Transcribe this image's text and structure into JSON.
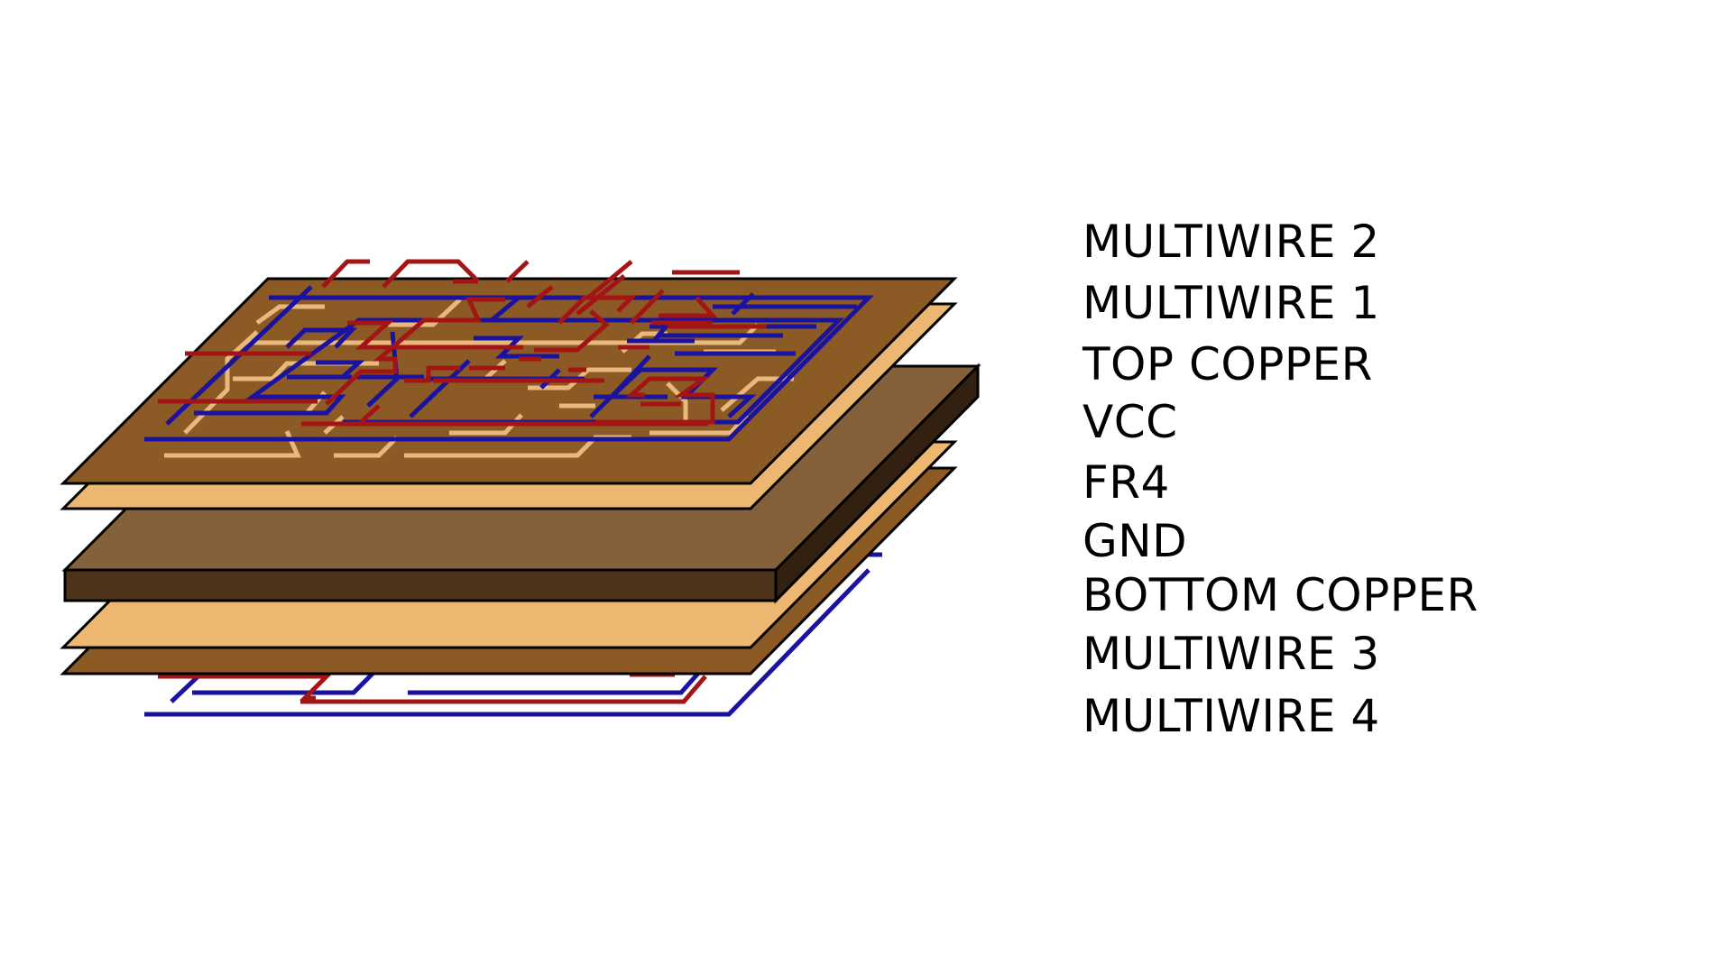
{
  "layers": [
    {
      "label": "MULTIWIRE 2"
    },
    {
      "label": "MULTIWIRE 1"
    },
    {
      "label": "TOP COPPER"
    },
    {
      "label": "VCC"
    },
    {
      "label": "FR4"
    },
    {
      "label": "GND"
    },
    {
      "label": "BOTTOM COPPER"
    },
    {
      "label": "MULTIWIRE 3"
    },
    {
      "label": "MULTIWIRE 4"
    }
  ],
  "colors": {
    "copper": "#8c5a25",
    "copper_light": "#ebb771",
    "fr4_top": "#84613a",
    "fr4_side": "#4d331a",
    "fr4_end": "#332010",
    "wire_red": "#a31515",
    "wire_blue": "#1a13a0",
    "trace": "#edbe82",
    "outline": "#000000"
  }
}
